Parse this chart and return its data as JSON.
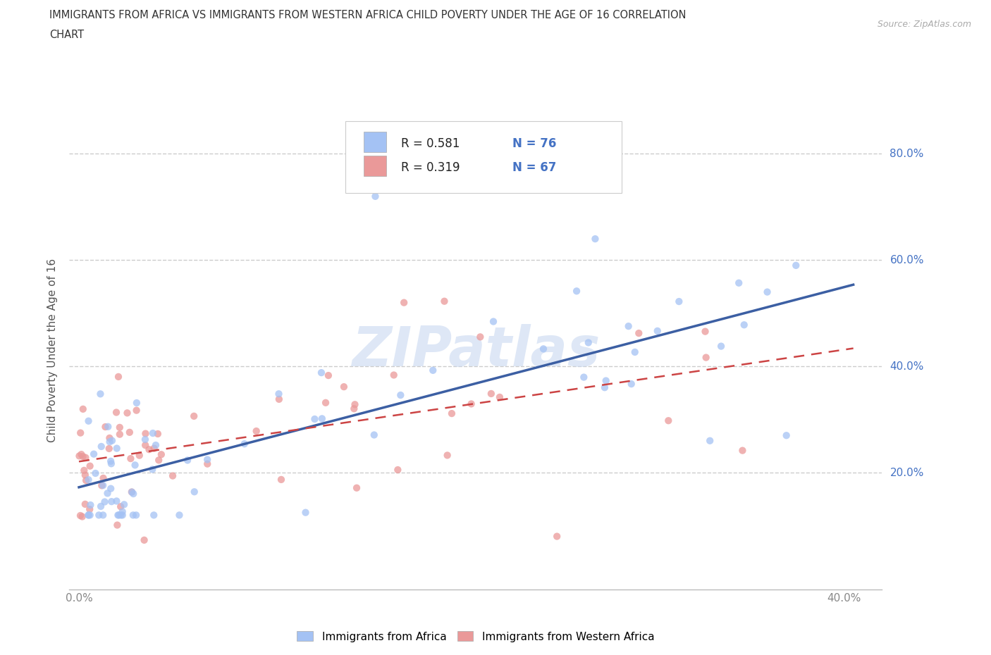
{
  "title_line1": "IMMIGRANTS FROM AFRICA VS IMMIGRANTS FROM WESTERN AFRICA CHILD POVERTY UNDER THE AGE OF 16 CORRELATION",
  "title_line2": "CHART",
  "source": "Source: ZipAtlas.com",
  "ylabel": "Child Poverty Under the Age of 16",
  "xlim": [
    -0.005,
    0.42
  ],
  "ylim": [
    -0.02,
    0.88
  ],
  "xticks": [
    0.0,
    0.05,
    0.1,
    0.15,
    0.2,
    0.25,
    0.3,
    0.35,
    0.4
  ],
  "xticklabels": [
    "0.0%",
    "",
    "",
    "",
    "",
    "",
    "",
    "",
    "40.0%"
  ],
  "yticks": [
    0.2,
    0.4,
    0.6,
    0.8
  ],
  "yticklabels": [
    "20.0%",
    "40.0%",
    "60.0%",
    "80.0%"
  ],
  "legend_R1": "R = 0.581",
  "legend_N1": "N = 76",
  "legend_R2": "R = 0.319",
  "legend_N2": "N = 67",
  "color_africa": "#a4c2f4",
  "color_western_africa": "#ea9999",
  "line_color_africa": "#3c5fa3",
  "line_color_western_africa": "#cc4444",
  "label_africa": "Immigrants from Africa",
  "label_western_africa": "Immigrants from Western Africa",
  "grid_color": "#cccccc",
  "bg_color": "#ffffff",
  "text_color_blue": "#4472c4",
  "watermark_color": "#c8d8f0",
  "africa_intercept": 0.155,
  "africa_slope": 1.0,
  "western_intercept": 0.23,
  "western_slope": 0.55
}
